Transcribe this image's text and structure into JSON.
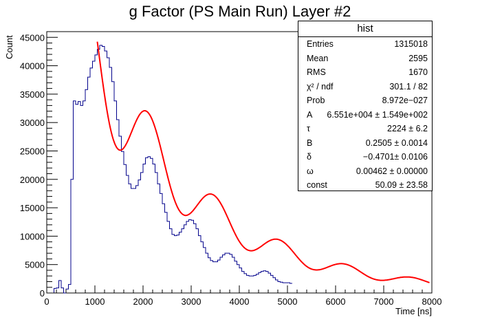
{
  "chart_data": {
    "type": "histogram",
    "title": "g Factor (PS Main Run) Layer #2",
    "xlabel": "Time [ns]",
    "ylabel": "Count",
    "xlim": [
      0,
      8000
    ],
    "ylim": [
      0,
      46000
    ],
    "x_ticks": [
      0,
      1000,
      2000,
      3000,
      4000,
      5000,
      6000,
      7000,
      8000
    ],
    "y_ticks": [
      0,
      5000,
      10000,
      15000,
      20000,
      25000,
      30000,
      35000,
      40000,
      45000
    ],
    "bin_width": 50,
    "hist_points": [
      [
        0,
        0
      ],
      [
        100,
        0
      ],
      [
        150,
        800
      ],
      [
        200,
        900
      ],
      [
        250,
        2200
      ],
      [
        300,
        900
      ],
      [
        350,
        0
      ],
      [
        400,
        700
      ],
      [
        450,
        1500
      ],
      [
        500,
        20000
      ],
      [
        550,
        33800
      ],
      [
        600,
        33200
      ],
      [
        650,
        33700
      ],
      [
        700,
        33000
      ],
      [
        750,
        33800
      ],
      [
        800,
        35800
      ],
      [
        850,
        38000
      ],
      [
        900,
        39600
      ],
      [
        950,
        40800
      ],
      [
        1000,
        41900
      ],
      [
        1050,
        42900
      ],
      [
        1100,
        43600
      ],
      [
        1150,
        43400
      ],
      [
        1200,
        42600
      ],
      [
        1250,
        41400
      ],
      [
        1300,
        39700
      ],
      [
        1350,
        37200
      ],
      [
        1400,
        33800
      ],
      [
        1450,
        30500
      ],
      [
        1500,
        27600
      ],
      [
        1550,
        24900
      ],
      [
        1600,
        22600
      ],
      [
        1650,
        20700
      ],
      [
        1700,
        19200
      ],
      [
        1750,
        18400
      ],
      [
        1800,
        18400
      ],
      [
        1850,
        18900
      ],
      [
        1900,
        19900
      ],
      [
        1950,
        21200
      ],
      [
        2000,
        22700
      ],
      [
        2050,
        23800
      ],
      [
        2100,
        24000
      ],
      [
        2150,
        23700
      ],
      [
        2200,
        22700
      ],
      [
        2250,
        21200
      ],
      [
        2300,
        19200
      ],
      [
        2350,
        17500
      ],
      [
        2400,
        15700
      ],
      [
        2450,
        14200
      ],
      [
        2500,
        12600
      ],
      [
        2550,
        11300
      ],
      [
        2600,
        10300
      ],
      [
        2650,
        10100
      ],
      [
        2700,
        10200
      ],
      [
        2750,
        10700
      ],
      [
        2800,
        11300
      ],
      [
        2850,
        12000
      ],
      [
        2900,
        12600
      ],
      [
        2950,
        12900
      ],
      [
        3000,
        12800
      ],
      [
        3050,
        12200
      ],
      [
        3100,
        11300
      ],
      [
        3150,
        10100
      ],
      [
        3200,
        9000
      ],
      [
        3250,
        8000
      ],
      [
        3300,
        7000
      ],
      [
        3350,
        6200
      ],
      [
        3400,
        5700
      ],
      [
        3450,
        5500
      ],
      [
        3500,
        5500
      ],
      [
        3550,
        5800
      ],
      [
        3600,
        6300
      ],
      [
        3650,
        6700
      ],
      [
        3700,
        7000
      ],
      [
        3750,
        7000
      ],
      [
        3800,
        6800
      ],
      [
        3850,
        6300
      ],
      [
        3900,
        5600
      ],
      [
        3950,
        5000
      ],
      [
        4000,
        4400
      ],
      [
        4050,
        3800
      ],
      [
        4100,
        3400
      ],
      [
        4150,
        3100
      ],
      [
        4200,
        3000
      ],
      [
        4250,
        3000
      ],
      [
        4300,
        3100
      ],
      [
        4350,
        3300
      ],
      [
        4400,
        3600
      ],
      [
        4450,
        3800
      ],
      [
        4500,
        3900
      ],
      [
        4550,
        3800
      ],
      [
        4600,
        3500
      ],
      [
        4650,
        3100
      ],
      [
        4700,
        2700
      ],
      [
        4750,
        2300
      ],
      [
        4800,
        2000
      ],
      [
        4850,
        1900
      ],
      [
        4900,
        1800
      ],
      [
        4950,
        1800
      ],
      [
        5000,
        1800
      ],
      [
        5050,
        1700
      ]
    ],
    "fit_curve": {
      "color": "#ff0000",
      "x_range": [
        1050,
        7950
      ],
      "function": "A*exp(-t/tau)*(1-B*cos(omega*t+delta))+const",
      "parameters": {
        "A": 65510,
        "tau": 2224,
        "B": 0.2505,
        "delta": -0.4701,
        "omega": 0.00462,
        "const": 50.09
      }
    },
    "line_color": "#00008b",
    "grid": false
  },
  "stats": {
    "name": "hist",
    "rows": [
      {
        "label": "Entries",
        "value": "1315018"
      },
      {
        "label": "Mean",
        "value": "2595"
      },
      {
        "label": "RMS",
        "value": "1670"
      },
      {
        "label": "χ² / ndf",
        "value": "301.1 / 82"
      },
      {
        "label": "Prob",
        "value": "8.972e−027"
      },
      {
        "label": "A",
        "value": "6.551e+004 ± 1.549e+002"
      },
      {
        "label": "τ",
        "value": "2224 ± 6.2"
      },
      {
        "label": "B",
        "value": "0.2505 ± 0.0014"
      },
      {
        "label": "δ",
        "value": "−0.4701± 0.0106"
      },
      {
        "label": "ω",
        "value": "0.00462 ± 0.00000"
      },
      {
        "label": "const",
        "value": "50.09 ± 23.58"
      }
    ]
  }
}
